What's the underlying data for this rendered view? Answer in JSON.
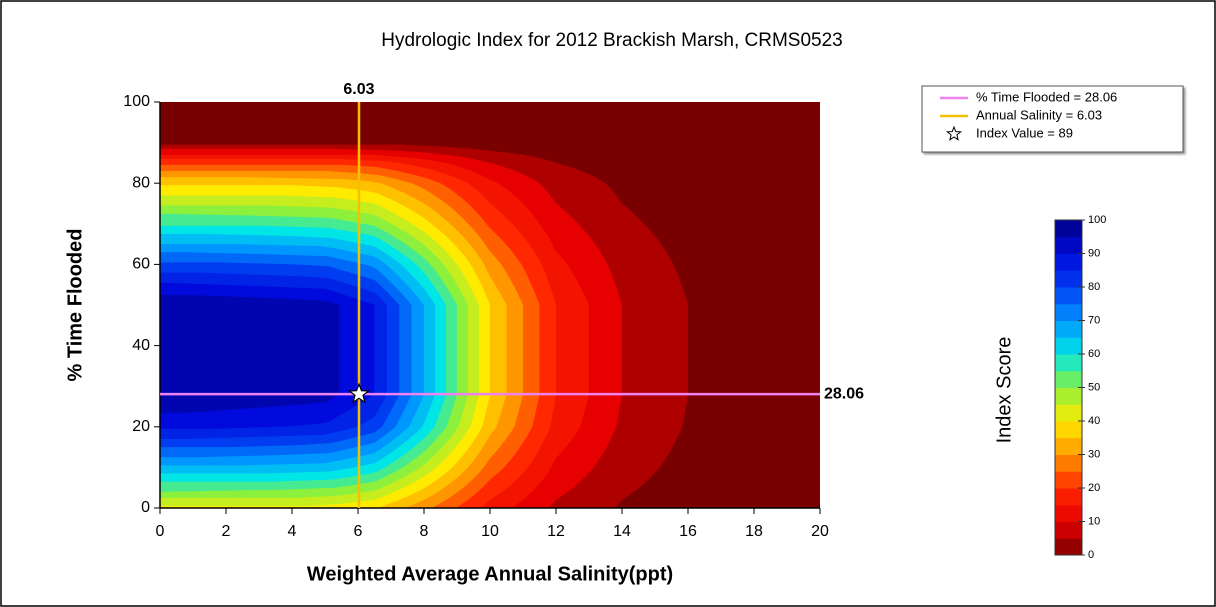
{
  "chart_data": {
    "type": "contour",
    "title": "Hydrologic Index for 2012 Brackish Marsh, CRMS0523",
    "xlabel": "Weighted Average Annual Salinity(ppt)",
    "ylabel": "% Time Flooded",
    "xlim": [
      0,
      20
    ],
    "xticks": [
      0,
      2,
      4,
      6,
      8,
      10,
      12,
      14,
      16,
      18,
      20
    ],
    "ylim": [
      0,
      100
    ],
    "yticks": [
      0,
      20,
      40,
      60,
      80,
      100
    ],
    "colorbar": {
      "label": "Index Score",
      "lim": [
        0,
        100
      ],
      "ticks": [
        0,
        10,
        20,
        30,
        40,
        50,
        60,
        70,
        80,
        90,
        100
      ]
    },
    "reference_lines": [
      {
        "axis": "y",
        "value": 28.06,
        "color": "#ee82ee",
        "legend": "% Time Flooded = 28.06"
      },
      {
        "axis": "x",
        "value": 6.03,
        "color": "#f2c200",
        "legend": "Annual Salinity = 6.03"
      }
    ],
    "point": {
      "x": 6.03,
      "y": 28.06,
      "value": 89,
      "legend": "Index Value = 89"
    }
  }
}
